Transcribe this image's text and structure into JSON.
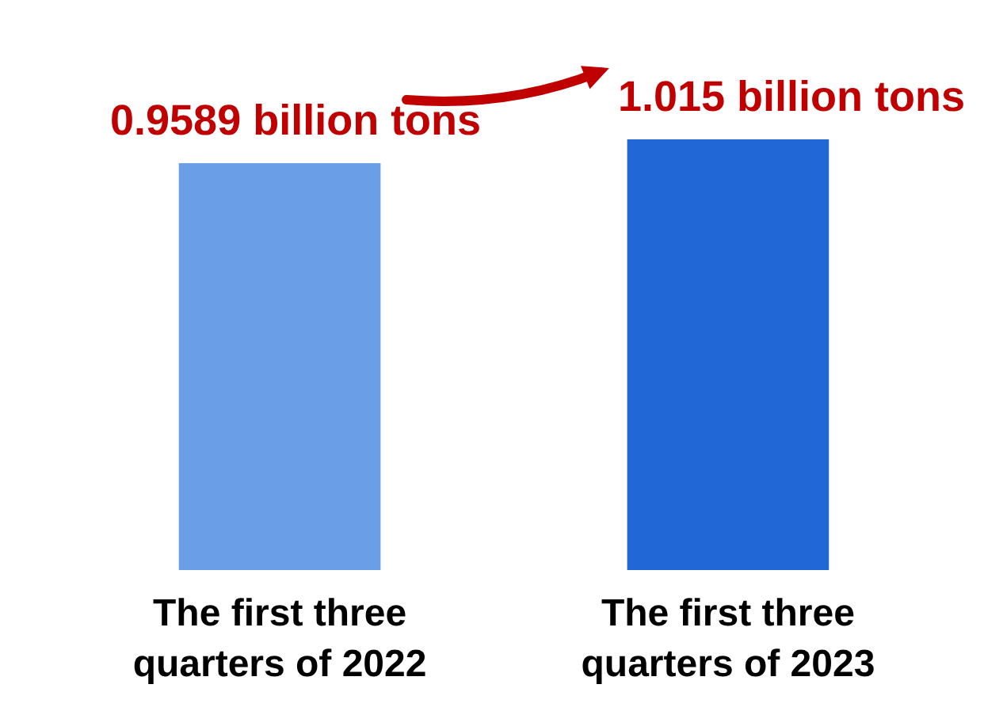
{
  "chart_data": {
    "type": "bar",
    "categories": [
      "The first three quarters of 2022",
      "The first three quarters of 2023"
    ],
    "values": [
      0.9589,
      1.015
    ],
    "colors": [
      "#6a9fe8",
      "#2168d6"
    ],
    "value_labels": [
      "0.9589 billion tons",
      "1.015 billion tons"
    ]
  }
}
